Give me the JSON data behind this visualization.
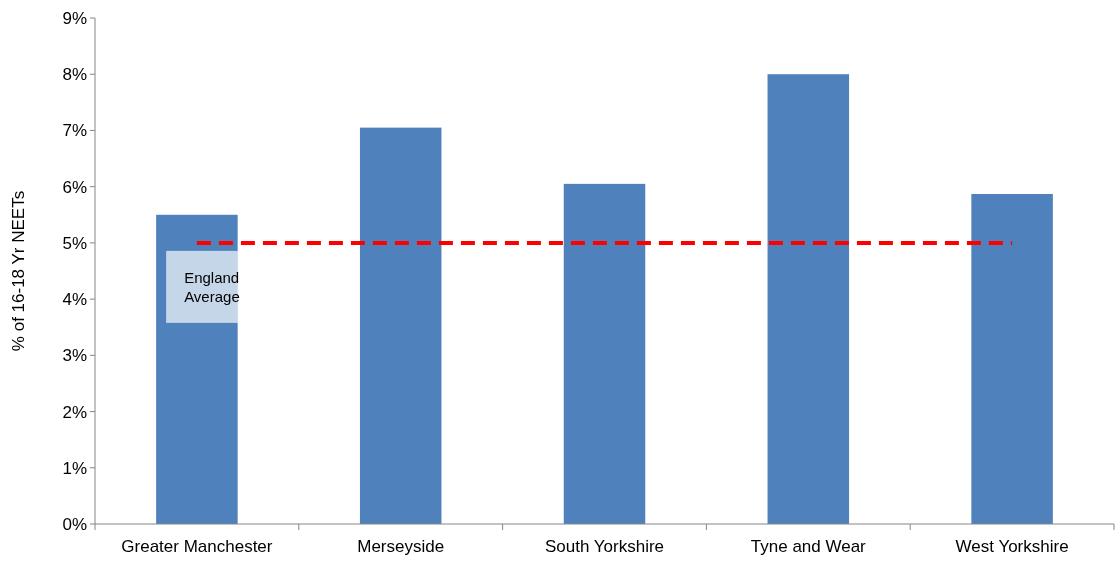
{
  "chart_data": {
    "type": "bar",
    "ylabel": "% of 16-18 Yr NEETs",
    "categories": [
      "Greater Manchester",
      "Merseyside",
      "South Yorkshire",
      "Tyne and Wear",
      "West Yorkshire"
    ],
    "values": [
      5.5,
      7.05,
      6.05,
      8.0,
      5.87
    ],
    "color": "#4f81bd",
    "ylim": [
      0,
      9
    ],
    "yticks": [
      {
        "value": 0,
        "label": "0%"
      },
      {
        "value": 1,
        "label": "1%"
      },
      {
        "value": 2,
        "label": "2%"
      },
      {
        "value": 3,
        "label": "3%"
      },
      {
        "value": 4,
        "label": "4%"
      },
      {
        "value": 5,
        "label": "5%"
      },
      {
        "value": 6,
        "label": "6%"
      },
      {
        "value": 7,
        "label": "7%"
      },
      {
        "value": 8,
        "label": "8%"
      },
      {
        "value": 9,
        "label": "9%"
      }
    ],
    "grid": false,
    "ref_lines": [
      {
        "axis": "y",
        "value": 5,
        "label": "England Average",
        "color": "#ff0000",
        "line_style": "dashed"
      }
    ]
  }
}
